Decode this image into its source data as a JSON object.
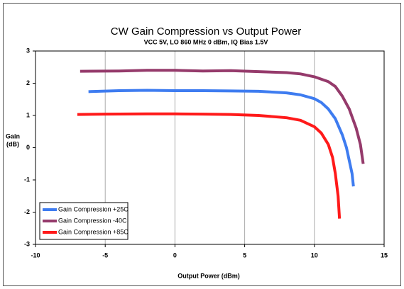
{
  "chart_data": {
    "type": "line",
    "title": "CW Gain Compression vs Output Power",
    "subtitle": "VCC 5V, LO 860 MHz 0 dBm, IQ Bias 1.5V",
    "xlabel": "Output Power (dBm)",
    "ylabel": [
      "Gain",
      "(dB)"
    ],
    "xlim": [
      -10,
      15
    ],
    "xticks": [
      -10,
      -5,
      0,
      5,
      10,
      15
    ],
    "ylim": [
      -3,
      3
    ],
    "yticks": [
      -3,
      -2,
      -1,
      0,
      1,
      2,
      3
    ],
    "grid": "x",
    "legend": "lower left",
    "series": [
      {
        "name": "Gain Compression +25C",
        "color": "#3e7cf0",
        "x": [
          -6.2,
          -4,
          -2,
          0,
          2,
          4,
          6,
          8,
          9,
          10,
          10.5,
          11,
          11.5,
          12,
          12.3,
          12.5,
          12.7,
          12.8
        ],
        "values": [
          1.74,
          1.77,
          1.78,
          1.77,
          1.77,
          1.76,
          1.75,
          1.7,
          1.64,
          1.52,
          1.4,
          1.2,
          0.9,
          0.4,
          0,
          -0.4,
          -0.8,
          -1.2
        ]
      },
      {
        "name": "Gain Compression -40C",
        "color": "#953a6b",
        "x": [
          -6.8,
          -4,
          -2,
          0,
          2,
          4,
          6,
          8,
          9,
          10,
          11,
          11.5,
          12,
          12.5,
          13,
          13.3,
          13.5
        ],
        "values": [
          2.37,
          2.38,
          2.4,
          2.4,
          2.38,
          2.39,
          2.36,
          2.33,
          2.29,
          2.2,
          2.05,
          1.9,
          1.6,
          1.2,
          0.6,
          0.1,
          -0.5
        ]
      },
      {
        "name": "Gain Compression +85C",
        "color": "#ff1a1a",
        "x": [
          -7,
          -5,
          -2,
          0,
          2,
          4,
          6,
          8,
          9,
          10,
          10.5,
          11,
          11.3,
          11.5,
          11.7,
          11.8
        ],
        "values": [
          1.03,
          1.04,
          1.05,
          1.05,
          1.04,
          1.03,
          1.0,
          0.93,
          0.85,
          0.65,
          0.45,
          0.1,
          -0.3,
          -0.8,
          -1.5,
          -2.2
        ]
      }
    ]
  }
}
